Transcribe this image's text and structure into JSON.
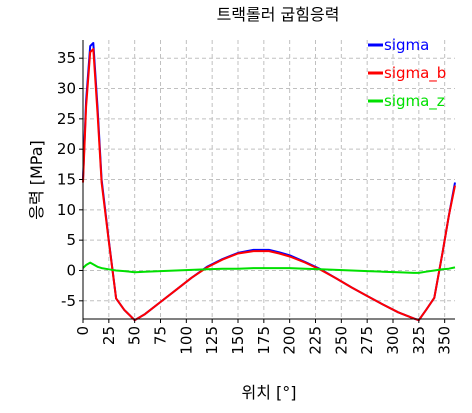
{
  "chart_data": {
    "type": "line",
    "title": "트랙롤러 굽힘응력",
    "xlabel": "위치 [°]",
    "ylabel": "응력 [MPa]",
    "xlim": [
      0,
      360
    ],
    "ylim": [
      -8,
      38
    ],
    "x_ticks": [
      0,
      25,
      50,
      75,
      100,
      125,
      150,
      175,
      200,
      225,
      250,
      275,
      300,
      325,
      350
    ],
    "y_ticks": [
      -5,
      0,
      5,
      10,
      15,
      20,
      25,
      30,
      35
    ],
    "grid": true,
    "legend_position": "top-right",
    "series": [
      {
        "name": "sigma",
        "color": "#0000ff",
        "x": [
          0,
          3,
          7,
          10,
          14,
          18,
          25,
          32,
          40,
          50,
          60,
          75,
          90,
          105,
          120,
          135,
          150,
          165,
          180,
          190,
          200,
          215,
          230,
          245,
          260,
          275,
          290,
          305,
          320,
          325,
          332,
          340,
          348,
          354,
          360
        ],
        "y": [
          15,
          28,
          37,
          37.5,
          27,
          15,
          5,
          -4.6,
          -6.5,
          -8.2,
          -7.2,
          -5.2,
          -3.2,
          -1.2,
          0.6,
          1.9,
          2.9,
          3.4,
          3.4,
          3.0,
          2.5,
          1.4,
          0.2,
          -1.3,
          -2.8,
          -4.2,
          -5.6,
          -6.9,
          -7.9,
          -8.2,
          -6.5,
          -4.5,
          3,
          9,
          14.5
        ]
      },
      {
        "name": "sigma_b",
        "color": "#ff0000",
        "x": [
          0,
          3,
          7,
          10,
          14,
          18,
          25,
          32,
          40,
          50,
          60,
          75,
          90,
          105,
          120,
          135,
          150,
          165,
          180,
          190,
          200,
          215,
          230,
          245,
          260,
          275,
          290,
          305,
          320,
          325,
          332,
          340,
          348,
          354,
          360
        ],
        "y": [
          14.5,
          27,
          36,
          36.5,
          26,
          14.5,
          4.8,
          -4.6,
          -6.5,
          -8.2,
          -7.2,
          -5.2,
          -3.2,
          -1.2,
          0.5,
          1.8,
          2.8,
          3.2,
          3.2,
          2.8,
          2.3,
          1.3,
          0.1,
          -1.3,
          -2.8,
          -4.2,
          -5.6,
          -6.9,
          -7.9,
          -8.2,
          -6.5,
          -4.5,
          3,
          9,
          14
        ]
      },
      {
        "name": "sigma_z",
        "color": "#00e000",
        "x": [
          0,
          3,
          7,
          10,
          14,
          18,
          25,
          32,
          40,
          50,
          60,
          75,
          90,
          105,
          120,
          135,
          150,
          165,
          180,
          190,
          200,
          215,
          230,
          245,
          260,
          275,
          290,
          305,
          320,
          325,
          332,
          340,
          348,
          354,
          360
        ],
        "y": [
          0.4,
          0.9,
          1.3,
          1.0,
          0.6,
          0.4,
          0.2,
          0.0,
          -0.1,
          -0.3,
          -0.2,
          -0.1,
          0.0,
          0.1,
          0.2,
          0.3,
          0.3,
          0.4,
          0.4,
          0.4,
          0.4,
          0.3,
          0.2,
          0.1,
          0.0,
          -0.1,
          -0.2,
          -0.3,
          -0.4,
          -0.4,
          -0.2,
          0.0,
          0.2,
          0.3,
          0.5
        ]
      }
    ]
  }
}
